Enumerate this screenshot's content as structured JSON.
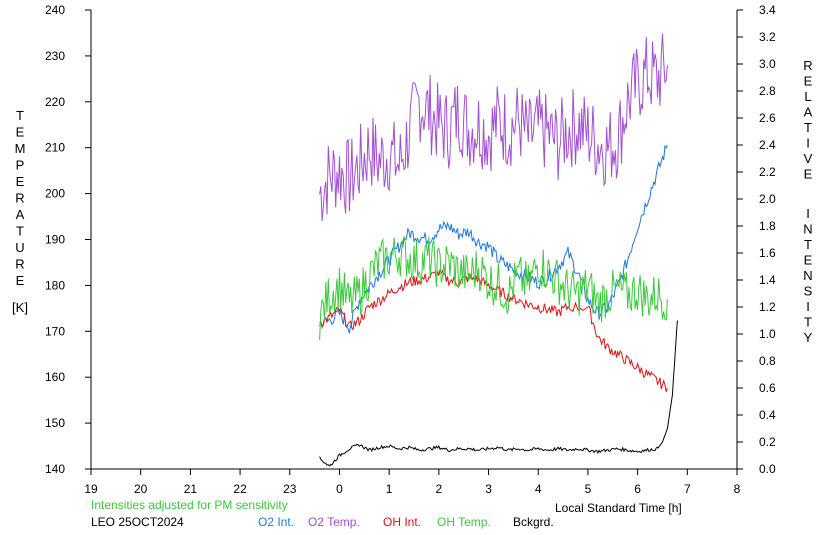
{
  "chart_data": {
    "type": "line",
    "left_axis_label_letters": [
      "T",
      "E",
      "M",
      "P",
      "E",
      "R",
      "A",
      "T",
      "U",
      "R",
      "E"
    ],
    "left_axis_unit": "[K]",
    "right_axis_label_word1": [
      "R",
      "E",
      "L",
      "A",
      "T",
      "I",
      "V",
      "E"
    ],
    "right_axis_label_word2": [
      "I",
      "N",
      "T",
      "E",
      "N",
      "S",
      "I",
      "T",
      "Y"
    ],
    "xlabel": "Local Standard Time [h]",
    "x_ticks": [
      19,
      20,
      21,
      22,
      23,
      0,
      1,
      2,
      3,
      4,
      5,
      6,
      7,
      8
    ],
    "x_range_hours": [
      19,
      32
    ],
    "y_left_ticks": [
      140,
      150,
      160,
      170,
      180,
      190,
      200,
      210,
      220,
      230,
      240
    ],
    "y_left_range": [
      140,
      240
    ],
    "y_right_ticks": [
      "0.0",
      "0.2",
      "0.4",
      "0.6",
      "0.8",
      "1.0",
      "1.2",
      "1.4",
      "1.6",
      "1.8",
      "2.0",
      "2.2",
      "2.4",
      "2.6",
      "2.8",
      "3.0",
      "3.2",
      "3.4"
    ],
    "y_right_range": [
      0,
      3.4
    ],
    "note": "Intensities adjusted for PM sensitivity",
    "station_date": "LEO 25OCT2024",
    "legend": [
      {
        "label": "O2 Int.",
        "color": "#1e78dc"
      },
      {
        "label": "O2 Temp.",
        "color": "#a050d2"
      },
      {
        "label": "OH Int.",
        "color": "#dc1414"
      },
      {
        "label": "OH Temp.",
        "color": "#3cc83c"
      },
      {
        "label": "Bckgrd.",
        "color": "#000000"
      }
    ],
    "series": [
      {
        "name": "O2 Temp.",
        "color": "#a050d2",
        "axis": "left",
        "x": [
          23.6,
          23.8,
          24.0,
          24.2,
          24.4,
          24.6,
          24.8,
          25.0,
          25.2,
          25.4,
          25.6,
          25.8,
          26.0,
          26.2,
          26.4,
          26.6,
          26.8,
          27.0,
          27.2,
          27.4,
          27.6,
          27.8,
          28.0,
          28.2,
          28.4,
          28.6,
          28.8,
          29.0,
          29.2,
          29.4,
          29.6,
          29.8,
          30.0,
          30.2,
          30.4,
          30.6
        ],
        "y": [
          200,
          204,
          205,
          203,
          206,
          210,
          207,
          209,
          206,
          213,
          220,
          218,
          215,
          214,
          218,
          214,
          215,
          213,
          216,
          214,
          216,
          212,
          214,
          213,
          211,
          214,
          215,
          213,
          211,
          210,
          212,
          220,
          224,
          226,
          225,
          228
        ]
      },
      {
        "name": "O2 Int.",
        "color": "#1e78dc",
        "axis": "right",
        "x": [
          23.6,
          23.8,
          24.0,
          24.2,
          24.4,
          24.6,
          24.8,
          25.0,
          25.2,
          25.4,
          25.6,
          25.8,
          26.0,
          26.2,
          26.4,
          26.6,
          26.8,
          27.0,
          27.2,
          27.4,
          27.6,
          27.8,
          28.0,
          28.2,
          28.4,
          28.6,
          28.8,
          29.0,
          29.2,
          29.4,
          29.6,
          29.8,
          30.0,
          30.2,
          30.4,
          30.6
        ],
        "y": [
          1.08,
          1.1,
          1.15,
          1.05,
          1.25,
          1.35,
          1.45,
          1.55,
          1.65,
          1.75,
          1.72,
          1.7,
          1.78,
          1.8,
          1.74,
          1.76,
          1.68,
          1.65,
          1.55,
          1.5,
          1.45,
          1.42,
          1.38,
          1.42,
          1.5,
          1.6,
          1.45,
          1.25,
          1.15,
          1.2,
          1.35,
          1.55,
          1.8,
          2.0,
          2.2,
          2.4
        ]
      },
      {
        "name": "OH Int.",
        "color": "#dc1414",
        "axis": "right",
        "x": [
          23.6,
          23.8,
          24.0,
          24.2,
          24.4,
          24.6,
          24.8,
          25.0,
          25.2,
          25.4,
          25.6,
          25.8,
          26.0,
          26.2,
          26.4,
          26.6,
          26.8,
          27.0,
          27.2,
          27.4,
          27.6,
          27.8,
          28.0,
          28.2,
          28.4,
          28.6,
          29.0,
          29.2,
          29.4,
          29.6,
          29.8,
          30.0,
          30.2,
          30.4,
          30.6
        ],
        "y": [
          1.08,
          1.12,
          1.18,
          1.05,
          1.1,
          1.2,
          1.25,
          1.3,
          1.35,
          1.38,
          1.4,
          1.42,
          1.45,
          1.4,
          1.38,
          1.42,
          1.4,
          1.36,
          1.32,
          1.28,
          1.25,
          1.22,
          1.2,
          1.18,
          1.16,
          1.2,
          1.2,
          0.98,
          0.9,
          0.85,
          0.8,
          0.75,
          0.7,
          0.65,
          0.6
        ]
      },
      {
        "name": "OH Temp.",
        "color": "#3cc83c",
        "axis": "left",
        "x": [
          23.6,
          23.8,
          24.0,
          24.2,
          24.4,
          24.6,
          24.8,
          25.0,
          25.2,
          25.4,
          25.6,
          25.8,
          26.0,
          26.2,
          26.4,
          26.6,
          26.8,
          27.0,
          27.2,
          27.4,
          27.6,
          27.8,
          28.0,
          28.2,
          28.4,
          28.6,
          28.8,
          29.0,
          29.2,
          29.4,
          29.6,
          29.8,
          30.0,
          30.2,
          30.4,
          30.6
        ],
        "y": [
          173,
          178,
          180,
          176,
          178,
          182,
          185,
          186,
          187,
          186,
          185,
          186,
          184,
          185,
          183,
          182,
          184,
          181,
          180,
          178,
          182,
          180,
          185,
          183,
          181,
          179,
          178,
          180,
          176,
          178,
          179,
          178,
          179,
          177,
          178,
          177
        ]
      },
      {
        "name": "Bckgrd.",
        "color": "#000000",
        "axis": "right",
        "x": [
          23.6,
          23.8,
          24.0,
          24.2,
          24.4,
          24.6,
          24.8,
          25.0,
          25.2,
          25.4,
          25.6,
          25.8,
          26.0,
          26.2,
          26.4,
          26.6,
          26.8,
          27.0,
          27.2,
          27.4,
          27.6,
          27.8,
          28.0,
          28.2,
          28.4,
          28.6,
          28.8,
          29.0,
          29.2,
          29.4,
          29.6,
          29.8,
          30.0,
          30.2,
          30.4,
          30.5,
          30.6,
          30.7,
          30.8
        ],
        "y": [
          0.08,
          0.02,
          0.1,
          0.15,
          0.18,
          0.14,
          0.16,
          0.17,
          0.15,
          0.16,
          0.14,
          0.15,
          0.16,
          0.14,
          0.15,
          0.15,
          0.14,
          0.15,
          0.16,
          0.14,
          0.15,
          0.14,
          0.15,
          0.14,
          0.15,
          0.14,
          0.15,
          0.14,
          0.13,
          0.14,
          0.15,
          0.14,
          0.13,
          0.14,
          0.15,
          0.2,
          0.3,
          0.55,
          1.1
        ]
      }
    ]
  }
}
